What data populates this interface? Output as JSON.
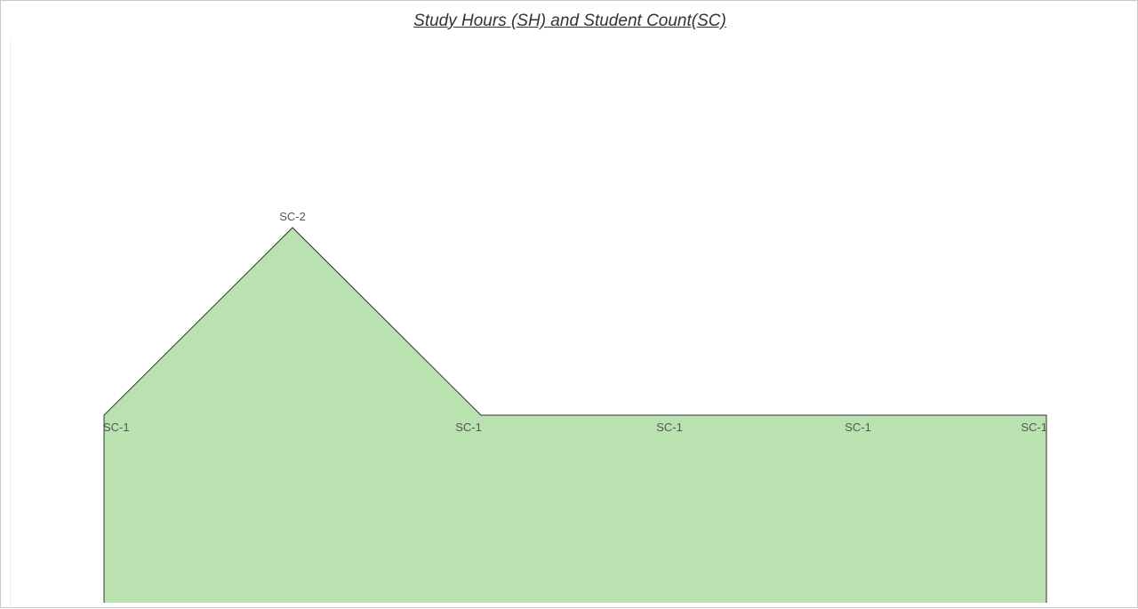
{
  "chart_data": {
    "type": "area",
    "title": "Study Hours (SH) and Student Count(SC)",
    "x": [
      1,
      2,
      3,
      4,
      5,
      6
    ],
    "series": [
      {
        "values": [
          1,
          2,
          1,
          1,
          1,
          1
        ],
        "labels": [
          "SC-1",
          "SC-2",
          "SC-1",
          "SC-1",
          "SC-1",
          "SC-1"
        ],
        "color": "#b9e2b0",
        "stroke": "#333333"
      }
    ],
    "ylim": [
      0,
      3
    ],
    "grid": false,
    "legend": "none"
  }
}
